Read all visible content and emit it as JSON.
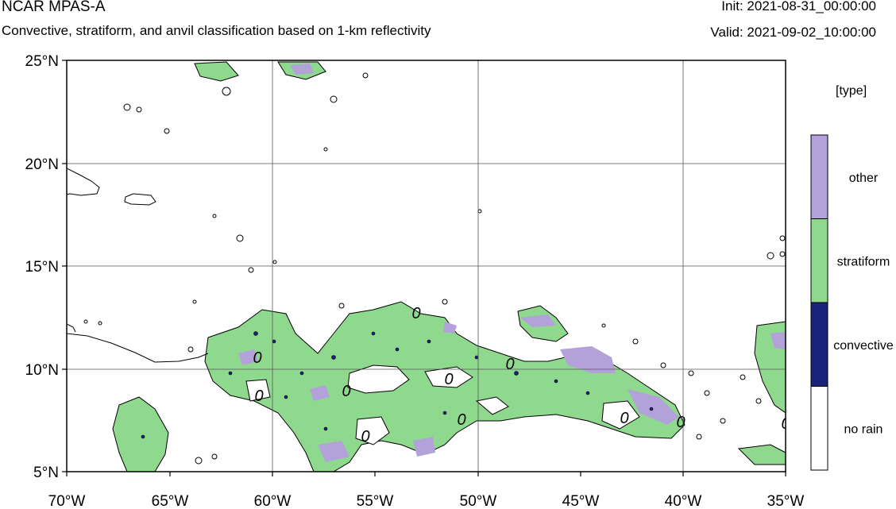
{
  "header": {
    "model_name": "NCAR MPAS-A",
    "subtitle": "Convective, stratiform, and anvil classification based on 1-km reflectivity",
    "init": "Init: 2021-08-31_00:00:00",
    "valid": "Valid: 2021-09-02_10:00:00"
  },
  "map": {
    "lat_labels": [
      "25°N",
      "20°N",
      "15°N",
      "10°N",
      "5°N"
    ],
    "lon_labels": [
      "70°W",
      "65°W",
      "60°W",
      "55°W",
      "50°W",
      "45°W",
      "40°W",
      "35°W"
    ],
    "contour_labels": [
      "0",
      "0",
      "0",
      "0",
      "0",
      "0",
      "0",
      "0",
      "0",
      "0",
      "0"
    ],
    "extent": {
      "lon_min": -70,
      "lon_max": -35,
      "lat_min": 5,
      "lat_max": 25
    }
  },
  "legend": {
    "title": "[type]",
    "items": [
      {
        "label": "other",
        "color": "#b3a1d9"
      },
      {
        "label": "stratiform",
        "color": "#8fd98f"
      },
      {
        "label": "convective",
        "color": "#1a237a"
      },
      {
        "label": "no rain",
        "color": "#ffffff"
      }
    ]
  },
  "colors": {
    "other": "#b3a1d9",
    "stratiform": "#8fd98f",
    "convective": "#1a237a",
    "no_rain": "#ffffff"
  }
}
